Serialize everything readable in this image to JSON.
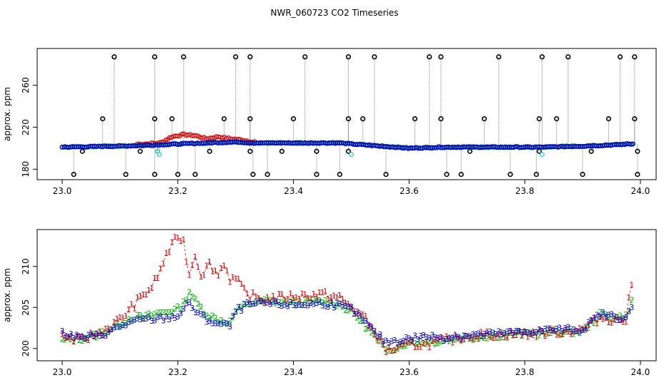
{
  "title": "NWR_060723  CO2 Timeseries",
  "colors": {
    "series1": "#e00000",
    "series2": "#00b000",
    "series3": "#0000d0",
    "spike": "#000000",
    "cyan": "#40d0d0",
    "drop": "#808080"
  },
  "chart_data": [
    {
      "type": "scatter",
      "panel": "top",
      "ylabel": "approx. ppm",
      "xlabel": "",
      "xlim": [
        23.0,
        24.0
      ],
      "ylim": [
        170,
        295
      ],
      "xticks": [
        "23.0",
        "23.2",
        "23.4",
        "23.6",
        "23.8",
        "24.0"
      ],
      "yticks": [
        "180",
        "220",
        "260"
      ],
      "baseline": {
        "x": [
          23.0,
          23.1,
          23.16,
          23.2,
          23.25,
          23.3,
          23.33,
          23.4,
          23.48,
          23.5,
          23.55,
          23.6,
          23.66,
          23.7,
          23.8,
          23.83,
          23.9,
          23.95,
          23.98
        ],
        "y": [
          201,
          202,
          203,
          204,
          205,
          206,
          205,
          205,
          205,
          204,
          202,
          200,
          201,
          201,
          201,
          201,
          202,
          203,
          204
        ]
      },
      "red_excursion": {
        "x": [
          23.14,
          23.17,
          23.19,
          23.21,
          23.23,
          23.25,
          23.27,
          23.29,
          23.31,
          23.33
        ],
        "y": [
          204,
          205,
          211,
          213,
          212,
          209,
          211,
          209,
          208,
          206
        ]
      },
      "spikes_high": [
        23.09,
        23.16,
        23.21,
        23.3,
        23.325,
        23.42,
        23.495,
        23.54,
        23.635,
        23.655,
        23.755,
        23.83,
        23.875,
        23.965,
        23.99
      ],
      "spikes_mid": [
        23.07,
        23.16,
        23.19,
        23.28,
        23.325,
        23.4,
        23.495,
        23.52,
        23.61,
        23.655,
        23.73,
        23.825,
        23.855,
        23.945,
        23.99
      ],
      "spikes_low": [
        23.02,
        23.11,
        23.16,
        23.2,
        23.23,
        23.33,
        23.355,
        23.44,
        23.48,
        23.56,
        23.665,
        23.69,
        23.775,
        23.82,
        23.9,
        23.995
      ],
      "spikes_near": [
        23.035,
        23.135,
        23.165,
        23.255,
        23.325,
        23.38,
        23.44,
        23.495,
        23.705,
        23.825,
        23.915,
        23.995
      ],
      "cyan_points": [
        {
          "x": 23.165,
          "y": 197
        },
        {
          "x": 23.168,
          "y": 194
        },
        {
          "x": 23.5,
          "y": 194
        },
        {
          "x": 23.83,
          "y": 194
        }
      ]
    },
    {
      "type": "scatter",
      "panel": "bottom",
      "ylabel": "approx. ppm",
      "xlabel": "",
      "xlim": [
        23.0,
        24.0
      ],
      "ylim": [
        198.5,
        214.5
      ],
      "xticks": [
        "23.0",
        "23.2",
        "23.4",
        "23.6",
        "23.8",
        "24.0"
      ],
      "yticks": [
        "200",
        "205",
        "210"
      ],
      "series": [
        {
          "name": "1",
          "symbol": "1",
          "color": "#e00000",
          "x": [
            23.0,
            23.03,
            23.06,
            23.08,
            23.1,
            23.12,
            23.14,
            23.155,
            23.17,
            23.18,
            23.19,
            23.2,
            23.21,
            23.22,
            23.23,
            23.24,
            23.255,
            23.27,
            23.28,
            23.29,
            23.3,
            23.32,
            23.35,
            23.4,
            23.45,
            23.48,
            23.5,
            23.52,
            23.54,
            23.56,
            23.58,
            23.6,
            23.62,
            23.65,
            23.7,
            23.75,
            23.8,
            23.85,
            23.9,
            23.93,
            23.96,
            23.975,
            23.985
          ],
          "y": [
            201.5,
            201,
            201.8,
            202.5,
            203.5,
            205,
            206.5,
            207.5,
            209.5,
            211.5,
            212.5,
            213.8,
            213,
            209,
            211.5,
            209,
            210.3,
            209,
            210.5,
            208.5,
            208.5,
            206.5,
            206,
            206.4,
            206.6,
            206.2,
            205,
            204,
            202,
            199.8,
            200,
            200.5,
            200.5,
            200.8,
            201.5,
            201.7,
            201.8,
            202,
            202.3,
            203.8,
            203.5,
            203.5,
            208
          ]
        },
        {
          "name": "2",
          "symbol": "2",
          "color": "#00b000",
          "x": [
            23.0,
            23.03,
            23.06,
            23.08,
            23.1,
            23.12,
            23.14,
            23.16,
            23.18,
            23.2,
            23.21,
            23.22,
            23.23,
            23.25,
            23.27,
            23.29,
            23.3,
            23.32,
            23.35,
            23.4,
            23.45,
            23.48,
            23.5,
            23.52,
            23.54,
            23.56,
            23.58,
            23.6,
            23.63,
            23.66,
            23.7,
            23.75,
            23.8,
            23.85,
            23.9,
            23.93,
            23.96,
            23.975,
            23.985
          ],
          "y": [
            201,
            201.2,
            201.6,
            202.3,
            203,
            203.8,
            203.8,
            204.2,
            204.5,
            204.8,
            205.5,
            207,
            205.8,
            204.2,
            203.5,
            203.2,
            204.5,
            205.5,
            205.8,
            205.6,
            205.8,
            205.4,
            204.5,
            203.2,
            201.5,
            199.8,
            200.2,
            200.8,
            200.8,
            201,
            201.4,
            201.6,
            201.8,
            202,
            202.1,
            204.1,
            203.8,
            203.9,
            205.8
          ]
        },
        {
          "name": "3",
          "symbol": "3",
          "color": "#0000d0",
          "x": [
            23.0,
            23.03,
            23.06,
            23.08,
            23.1,
            23.12,
            23.14,
            23.16,
            23.18,
            23.2,
            23.22,
            23.23,
            23.25,
            23.27,
            23.29,
            23.3,
            23.32,
            23.35,
            23.4,
            23.45,
            23.48,
            23.5,
            23.52,
            23.54,
            23.56,
            23.58,
            23.6,
            23.63,
            23.66,
            23.7,
            23.75,
            23.8,
            23.85,
            23.9,
            23.93,
            23.96,
            23.975,
            23.985
          ],
          "y": [
            202,
            201.3,
            201.5,
            202,
            202.7,
            203.2,
            203.5,
            203.6,
            203.7,
            204,
            205.6,
            204.5,
            203.5,
            203,
            202.8,
            204.5,
            205.3,
            205.5,
            205.3,
            205.5,
            205.2,
            204.8,
            203.5,
            202,
            200.8,
            201,
            201.2,
            201.5,
            201.3,
            201.6,
            201.8,
            202,
            202.3,
            202.3,
            204.2,
            203.8,
            203.8,
            204.8
          ]
        }
      ]
    }
  ]
}
